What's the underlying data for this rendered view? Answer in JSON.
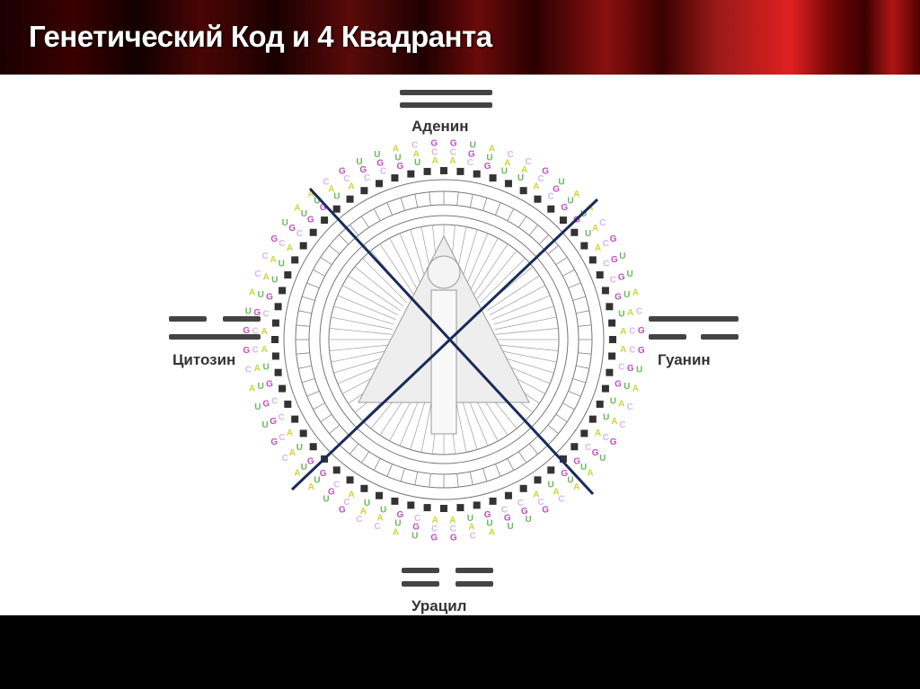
{
  "slide": {
    "title": "Генетический Код и 4 Квадранта"
  },
  "quadrants": {
    "top": {
      "label": "Аденин"
    },
    "left": {
      "label": "Цитозин"
    },
    "right": {
      "label": "Гуанин"
    },
    "bottom": {
      "label": "Урацил"
    }
  },
  "colors": {
    "cross_lines": "#1a2a5a",
    "trigram_lines": "#444444",
    "A": "#c8d83a",
    "U": "#6ab85a",
    "G": "#c050c0",
    "C": "#d8b8e8"
  }
}
